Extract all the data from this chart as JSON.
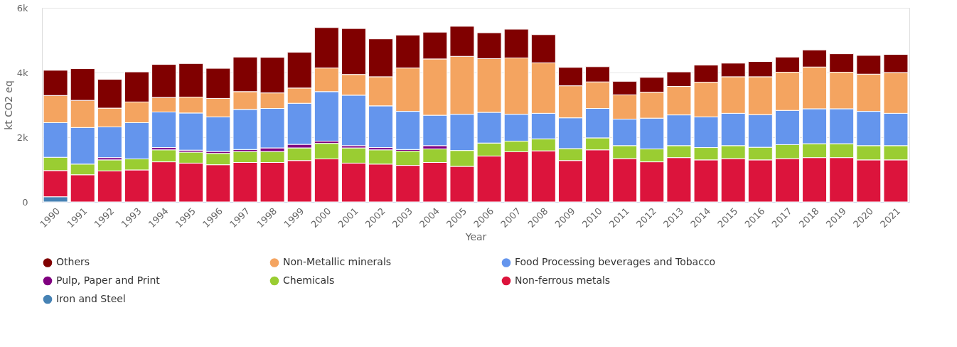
{
  "chart_data": {
    "type": "bar",
    "xlabel": "Year",
    "ylabel": "kt CO2 eq",
    "stacked": true,
    "grid": "y",
    "legend": "bottom",
    "ylim": [
      0,
      6000
    ],
    "yticks": [
      {
        "value": 0,
        "label": "0"
      },
      {
        "value": 2000,
        "label": "2k"
      },
      {
        "value": 4000,
        "label": "4k"
      },
      {
        "value": 6000,
        "label": "6k"
      }
    ],
    "categories": [
      "1990",
      "1991",
      "1992",
      "1993",
      "1994",
      "1995",
      "1996",
      "1997",
      "1998",
      "1999",
      "2000",
      "2001",
      "2002",
      "2003",
      "2004",
      "2005",
      "2006",
      "2007",
      "2008",
      "2009",
      "2010",
      "2011",
      "2012",
      "2013",
      "2014",
      "2015",
      "2016",
      "2017",
      "2018",
      "2019",
      "2020",
      "2021"
    ],
    "series": [
      {
        "name": "Iron and Steel",
        "color": "#4682b4",
        "values": [
          160,
          null,
          null,
          null,
          null,
          null,
          null,
          null,
          null,
          null,
          null,
          null,
          null,
          null,
          null,
          null,
          null,
          null,
          null,
          null,
          null,
          null,
          null,
          null,
          null,
          null,
          null,
          null,
          null,
          null,
          null,
          null
        ]
      },
      {
        "name": "Non-ferrous metals",
        "color": "#dc143c",
        "values": [
          810,
          840,
          960,
          990,
          1240,
          1200,
          1150,
          1220,
          1220,
          1280,
          1330,
          1200,
          1170,
          1130,
          1220,
          1100,
          1420,
          1550,
          1580,
          1280,
          1610,
          1340,
          1240,
          1370,
          1300,
          1340,
          1300,
          1340,
          1370,
          1370,
          1300,
          1300
        ]
      },
      {
        "name": "Chemicals",
        "color": "#9acd32",
        "values": [
          410,
          330,
          340,
          340,
          370,
          340,
          350,
          340,
          340,
          390,
          480,
          470,
          440,
          440,
          420,
          490,
          400,
          330,
          370,
          370,
          370,
          400,
          400,
          370,
          380,
          400,
          390,
          430,
          430,
          430,
          440,
          440
        ]
      },
      {
        "name": "Pulp, Paper and Print",
        "color": "#800080",
        "values": [
          null,
          null,
          70,
          null,
          70,
          60,
          60,
          60,
          110,
          110,
          70,
          70,
          70,
          50,
          100,
          null,
          null,
          null,
          null,
          null,
          null,
          null,
          null,
          null,
          null,
          null,
          null,
          null,
          null,
          null,
          null,
          null
        ]
      },
      {
        "name": "Food Processing beverages and Tobacco",
        "color": "#6495ed",
        "values": [
          1070,
          1130,
          950,
          1120,
          1100,
          1150,
          1070,
          1240,
          1220,
          1270,
          1530,
          1560,
          1290,
          1180,
          940,
          1120,
          950,
          830,
          790,
          950,
          910,
          820,
          950,
          950,
          950,
          1000,
          1010,
          1060,
          1080,
          1080,
          1060,
          1000
        ]
      },
      {
        "name": "Non-Metallic minerals",
        "color": "#f4a460",
        "values": [
          840,
          840,
          580,
          640,
          450,
          490,
          570,
          550,
          480,
          470,
          730,
          640,
          900,
          1340,
          1740,
          1790,
          1660,
          1740,
          1560,
          990,
          820,
          750,
          800,
          880,
          1070,
          1130,
          1170,
          1180,
          1290,
          1130,
          1150,
          1260
        ]
      },
      {
        "name": "Others",
        "color": "#800000",
        "values": [
          780,
          980,
          890,
          930,
          1020,
          1040,
          930,
          1070,
          1100,
          1110,
          1250,
          1420,
          1170,
          1020,
          830,
          930,
          800,
          890,
          870,
          570,
          470,
          420,
          460,
          450,
          530,
          420,
          470,
          470,
          530,
          570,
          580,
          560
        ]
      }
    ]
  }
}
